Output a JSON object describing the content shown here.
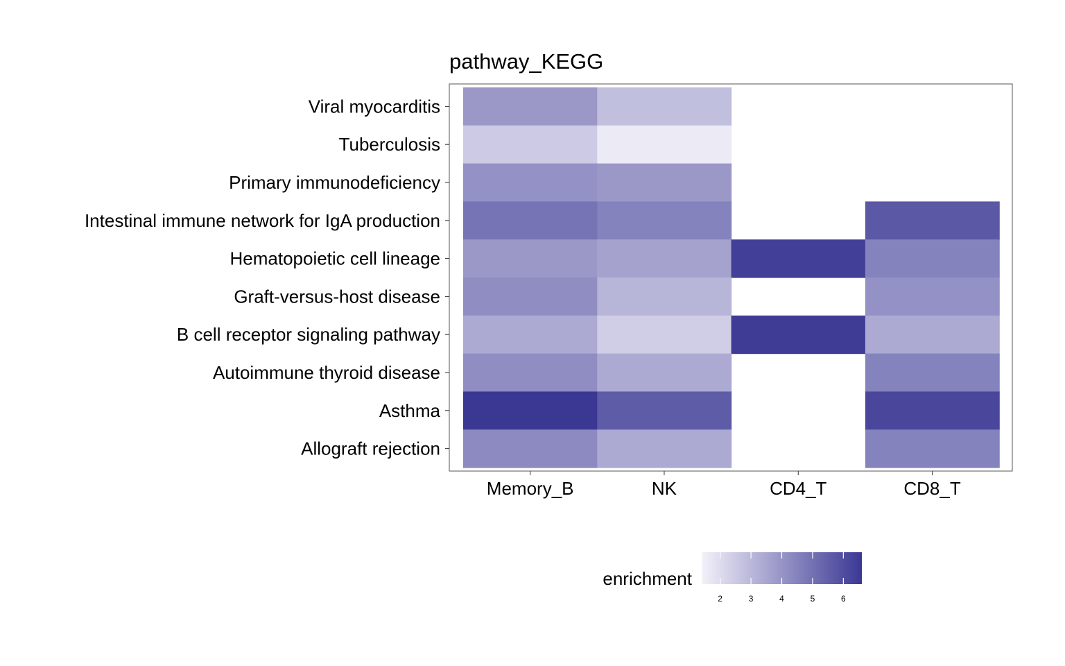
{
  "chart_data": {
    "type": "heatmap",
    "title": "pathway_KEGG",
    "x_categories": [
      "Memory_B",
      "NK",
      "CD4_T",
      "CD8_T"
    ],
    "y_categories": [
      "Viral myocarditis",
      "Tuberculosis",
      "Primary immunodeficiency",
      "Intestinal immune network for IgA production",
      "Hematopoietic cell lineage",
      "Graft-versus-host disease",
      "B cell receptor signaling pathway",
      "Autoimmune thyroid disease",
      "Asthma",
      "Allograft rejection"
    ],
    "values": [
      [
        3.9,
        2.8,
        null,
        null
      ],
      [
        2.5,
        1.6,
        null,
        null
      ],
      [
        4.1,
        3.9,
        null,
        null
      ],
      [
        4.9,
        4.5,
        null,
        5.7
      ],
      [
        3.9,
        3.6,
        6.4,
        4.5
      ],
      [
        4.2,
        3.1,
        null,
        4.1
      ],
      [
        3.4,
        2.4,
        6.5,
        3.4
      ],
      [
        4.2,
        3.4,
        null,
        4.5
      ],
      [
        6.6,
        5.6,
        null,
        6.2
      ],
      [
        4.3,
        3.4,
        null,
        4.5
      ]
    ],
    "legend": {
      "title": "enrichment",
      "ticks": [
        2,
        3,
        4,
        5,
        6
      ],
      "range": [
        1.4,
        6.6
      ],
      "low_color": "#f3f1f9",
      "high_color": "#3b3894",
      "placement": "bottom"
    },
    "grid": false
  }
}
